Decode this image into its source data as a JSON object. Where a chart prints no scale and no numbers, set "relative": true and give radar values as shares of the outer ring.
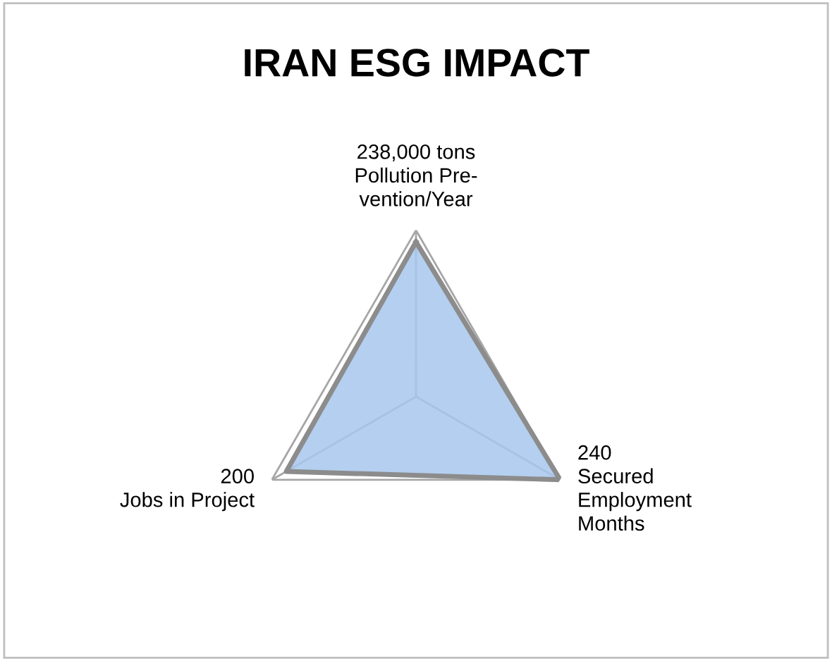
{
  "chart_data": {
    "type": "radar",
    "title": "IRAN ESG IMPACT",
    "categories": [
      "238,000 tons\nPollution Pre-\nvention/Year",
      "240\nSecured\nEmployment\nMonths",
      "200\nJobs in Project"
    ],
    "series": [
      {
        "color": "#a7c7ee",
        "values": [
          0.93,
          1.0,
          0.9
        ]
      }
    ],
    "relative": true,
    "grid": true
  }
}
